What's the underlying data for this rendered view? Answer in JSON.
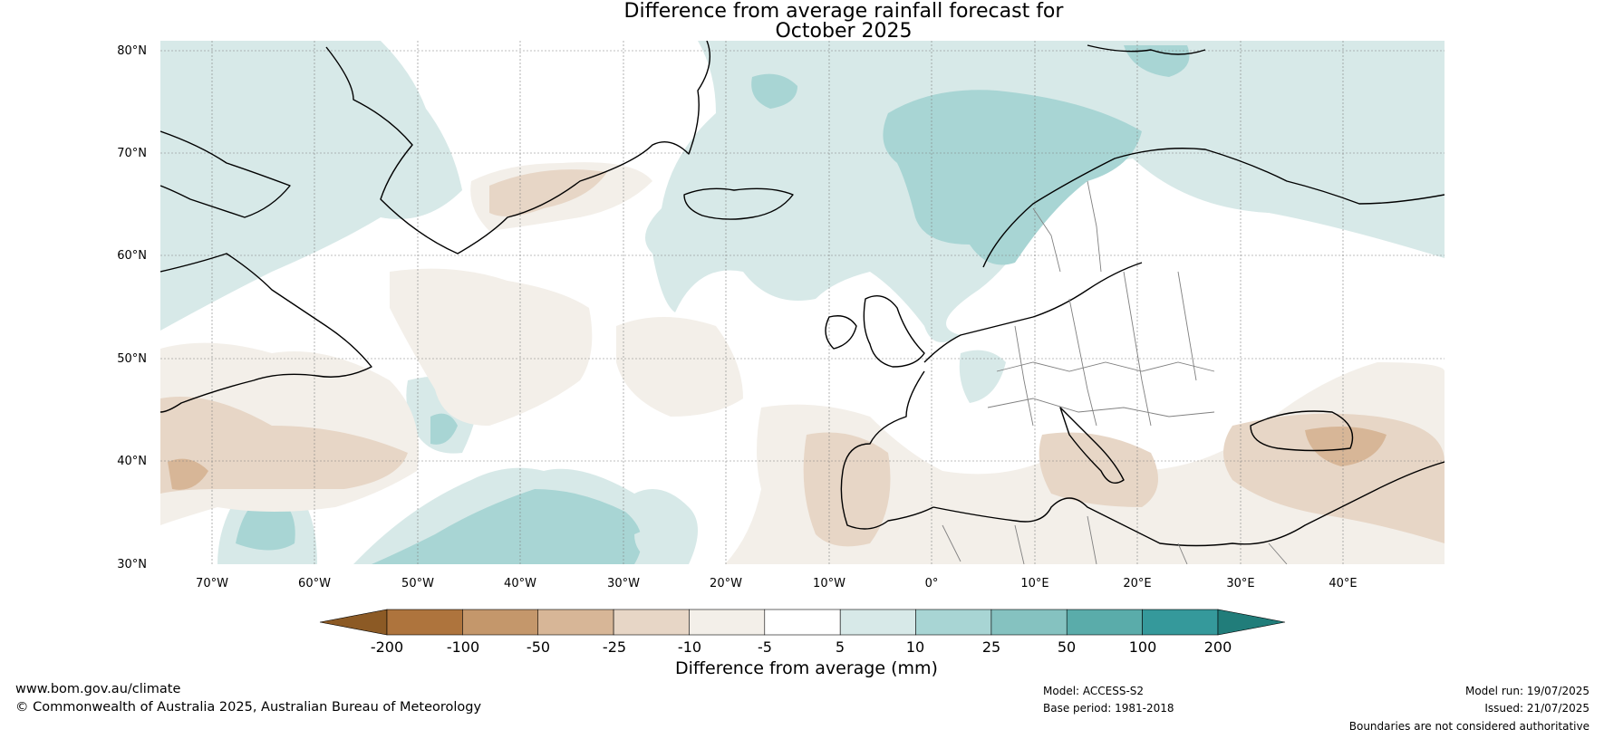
{
  "title": {
    "line1": "Difference from average rainfall forecast for",
    "line2": "October 2025"
  },
  "map": {
    "lat_labels": [
      "80°N",
      "70°N",
      "60°N",
      "50°N",
      "40°N",
      "30°N"
    ],
    "lon_labels": [
      "70°W",
      "60°W",
      "50°W",
      "40°W",
      "30°W",
      "20°W",
      "10°W",
      "0°",
      "10°E",
      "20°E",
      "30°E",
      "40°E"
    ],
    "lat_range": [
      30,
      80
    ],
    "lon_range": [
      -75,
      50
    ],
    "gridlines": true,
    "coastline_color": "#000000",
    "border_color": "#808080"
  },
  "colorbar": {
    "ticks": [
      "-200",
      "-100",
      "-50",
      "-25",
      "-10",
      "-5",
      "5",
      "10",
      "25",
      "50",
      "100",
      "200"
    ],
    "colors": [
      "#8c5a25",
      "#ae743d",
      "#c4976b",
      "#d7b697",
      "#e7d6c6",
      "#f3efe9",
      "#ffffff",
      "#d7e9e8",
      "#a8d5d4",
      "#85c2c0",
      "#5aacaa",
      "#35999b",
      "#217d7a"
    ],
    "label": "Difference from average (mm)"
  },
  "footer": {
    "url": "www.bom.gov.au/climate",
    "copyright": "© Commonwealth of Australia 2025, Australian Bureau of Meteorology",
    "model": "Model: ACCESS-S2",
    "base_period": "Base period: 1981-2018",
    "model_run": "Model run: 19/07/2025",
    "issued": "Issued: 21/07/2025",
    "boundaries": "Boundaries are not considered authoritative"
  }
}
